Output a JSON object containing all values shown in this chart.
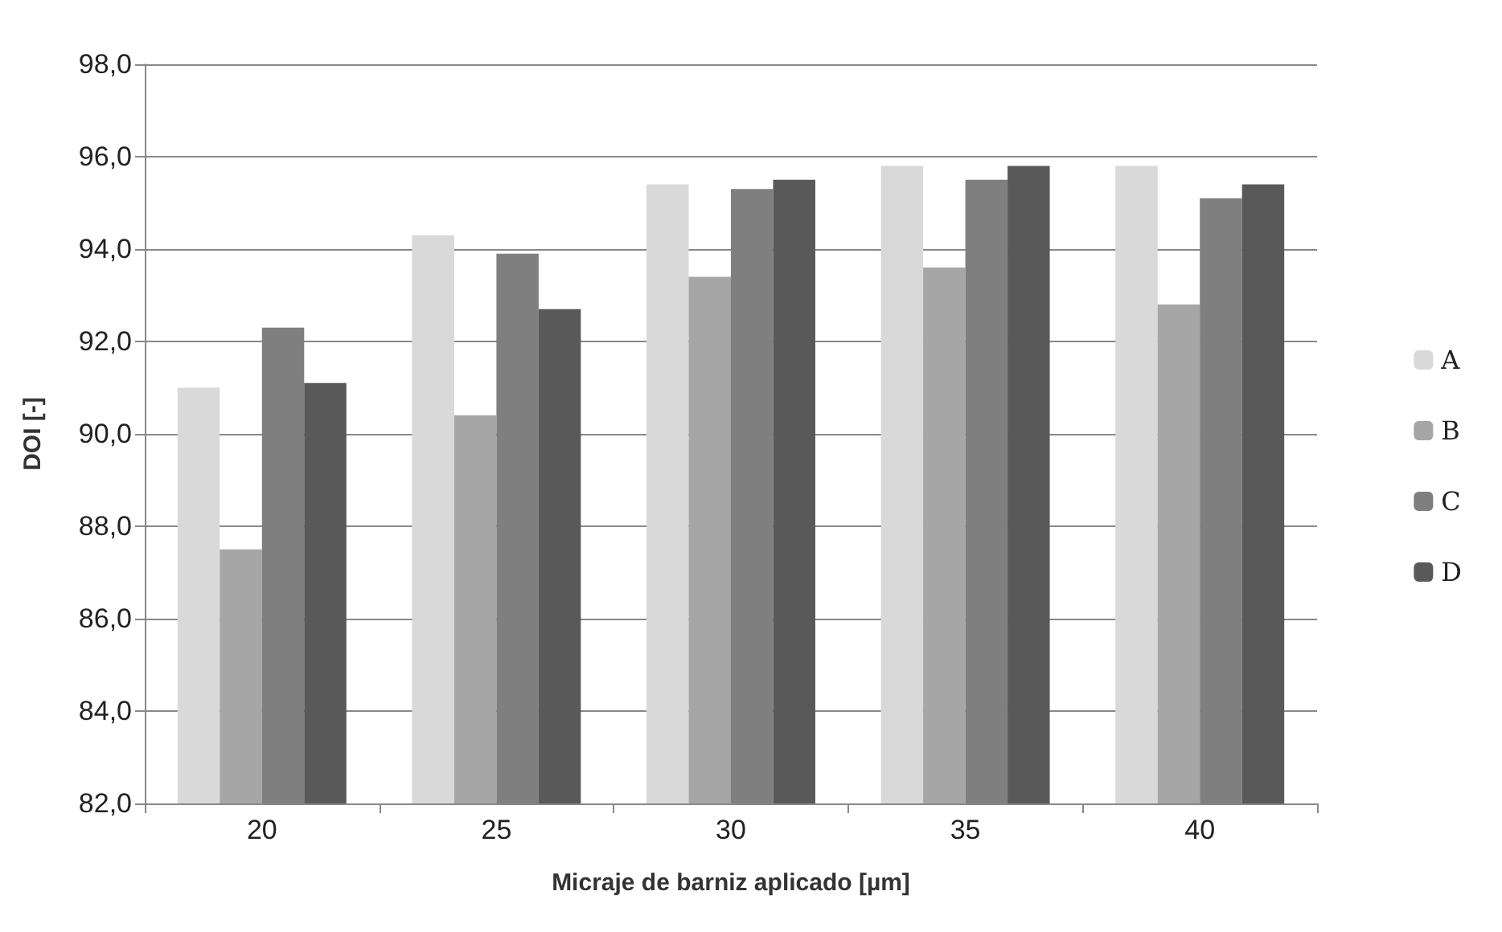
{
  "chart_data": {
    "type": "bar",
    "xlabel": "Micraje de barniz aplicado [µm]",
    "ylabel": "DOI [-]",
    "categories": [
      "20",
      "25",
      "30",
      "35",
      "40"
    ],
    "series": [
      {
        "name": "A",
        "color": "#d9d9d9",
        "values": [
          91.0,
          94.3,
          95.4,
          95.8,
          95.8
        ]
      },
      {
        "name": "B",
        "color": "#a6a6a6",
        "values": [
          87.5,
          90.4,
          93.4,
          93.6,
          92.8
        ]
      },
      {
        "name": "C",
        "color": "#7f7f7f",
        "values": [
          92.3,
          93.9,
          95.3,
          95.5,
          95.1
        ]
      },
      {
        "name": "D",
        "color": "#595959",
        "values": [
          91.1,
          92.7,
          95.5,
          95.8,
          95.4
        ]
      }
    ],
    "ylim": [
      82,
      98
    ],
    "yticks": [
      {
        "value": 82,
        "label": "82,0"
      },
      {
        "value": 84,
        "label": "84,0"
      },
      {
        "value": 86,
        "label": "86,0"
      },
      {
        "value": 88,
        "label": "88,0"
      },
      {
        "value": 90,
        "label": "90,0"
      },
      {
        "value": 92,
        "label": "92,0"
      },
      {
        "value": 94,
        "label": "94,0"
      },
      {
        "value": 96,
        "label": "96,0"
      },
      {
        "value": 98,
        "label": "98,0"
      }
    ],
    "grid": "y",
    "legend": "right"
  }
}
